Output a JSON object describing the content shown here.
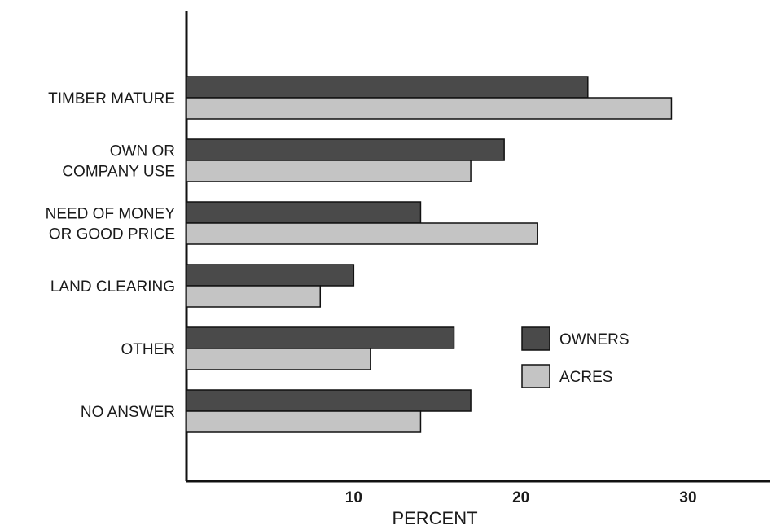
{
  "chart_data": {
    "type": "bar",
    "orientation": "horizontal",
    "categories": [
      [
        "TIMBER MATURE"
      ],
      [
        "OWN OR",
        "COMPANY USE"
      ],
      [
        "NEED OF MONEY",
        "OR GOOD PRICE"
      ],
      [
        "LAND CLEARING"
      ],
      [
        "OTHER"
      ],
      [
        "NO ANSWER"
      ]
    ],
    "series": [
      {
        "name": "OWNERS",
        "values": [
          24,
          19,
          14,
          10,
          16,
          17
        ],
        "color": "#4a4a4a"
      },
      {
        "name": "ACRES",
        "values": [
          29,
          17,
          21,
          8,
          11,
          14
        ],
        "color": "#c4c4c4"
      }
    ],
    "xlabel": "PERCENT",
    "xlim": [
      0,
      35
    ],
    "xticks": [
      "10",
      "20",
      "30"
    ],
    "xtick_values": [
      10,
      20,
      30
    ],
    "legend": "right-center",
    "grid": false
  }
}
